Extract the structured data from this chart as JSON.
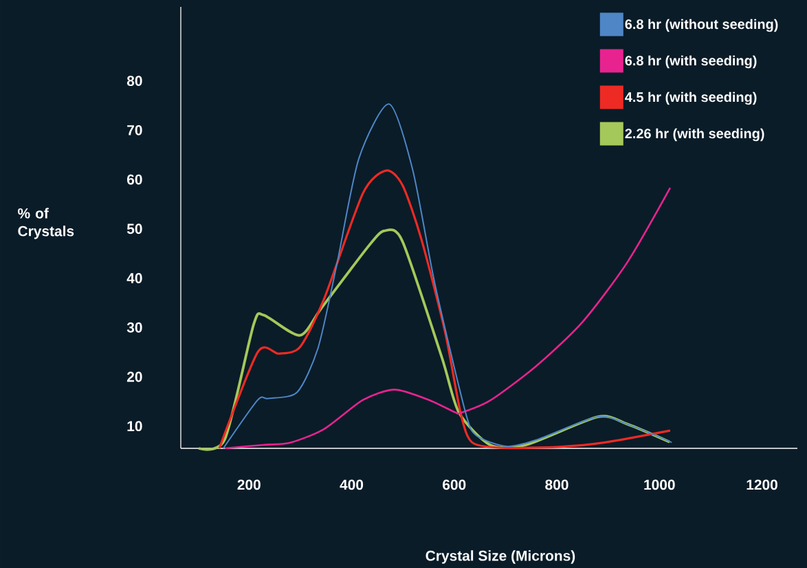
{
  "chart_data": {
    "type": "line",
    "xlabel": "Crystal Size (Microns)",
    "ylabel": "% of Crystals",
    "xlim": [
      67,
      1269
    ],
    "ylim": [
      5.5,
      95
    ],
    "xticks": [
      200,
      400,
      600,
      800,
      1000,
      1200
    ],
    "yticks": [
      10,
      20,
      30,
      40,
      50,
      60,
      70,
      80
    ],
    "grid": false,
    "legend": "top right",
    "marker": "none",
    "line_style": "solid",
    "series": [
      {
        "name": "6.8 hr (without seeding)",
        "color": "#4f86c6",
        "x": [
          150,
          217,
          237,
          294,
          335,
          371,
          414,
          473,
          519,
          563,
          622,
          643,
          702,
          760,
          880,
          938,
          1024
        ],
        "values": [
          5.5,
          15.3,
          15.6,
          16.9,
          26,
          42.7,
          64.2,
          75.3,
          62,
          38.5,
          12.8,
          8.1,
          5.9,
          7.2,
          11.9,
          10.4,
          6.7
        ]
      },
      {
        "name": "6.8 hr (with seeding)",
        "color": "#e8238f",
        "x": [
          153,
          228,
          279,
          346,
          422,
          484,
          551,
          602,
          613,
          670,
          760,
          850,
          938,
          1021
        ],
        "values": [
          5.5,
          6.2,
          6.6,
          9.4,
          15.3,
          17.4,
          15.3,
          12.8,
          12.7,
          15.2,
          22.2,
          31.1,
          43.3,
          58.3
        ]
      },
      {
        "name": "4.5 hr (with seeding)",
        "color": "#ee2a24",
        "x": [
          142,
          217,
          258,
          299,
          346,
          422,
          467,
          499,
          536,
          582,
          613,
          635,
          693,
          804,
          894,
          1021
        ],
        "values": [
          5.5,
          25,
          24.7,
          26,
          35.7,
          57.2,
          61.8,
          58.9,
          47.9,
          29.2,
          12.4,
          6.7,
          5.6,
          5.8,
          6.7,
          9.1
        ]
      },
      {
        "name": "2.26 hr (with seeding)",
        "color": "#a5c85a",
        "x": [
          102,
          153,
          209,
          229,
          299,
          343,
          433,
          464,
          499,
          576,
          609,
          670,
          740,
          880,
          938,
          1020
        ],
        "values": [
          5.5,
          7.4,
          30.6,
          32.5,
          28.4,
          34.2,
          46.5,
          49.6,
          47.5,
          23.9,
          12.8,
          6.2,
          6.2,
          11.9,
          10.4,
          6.8
        ]
      }
    ]
  }
}
